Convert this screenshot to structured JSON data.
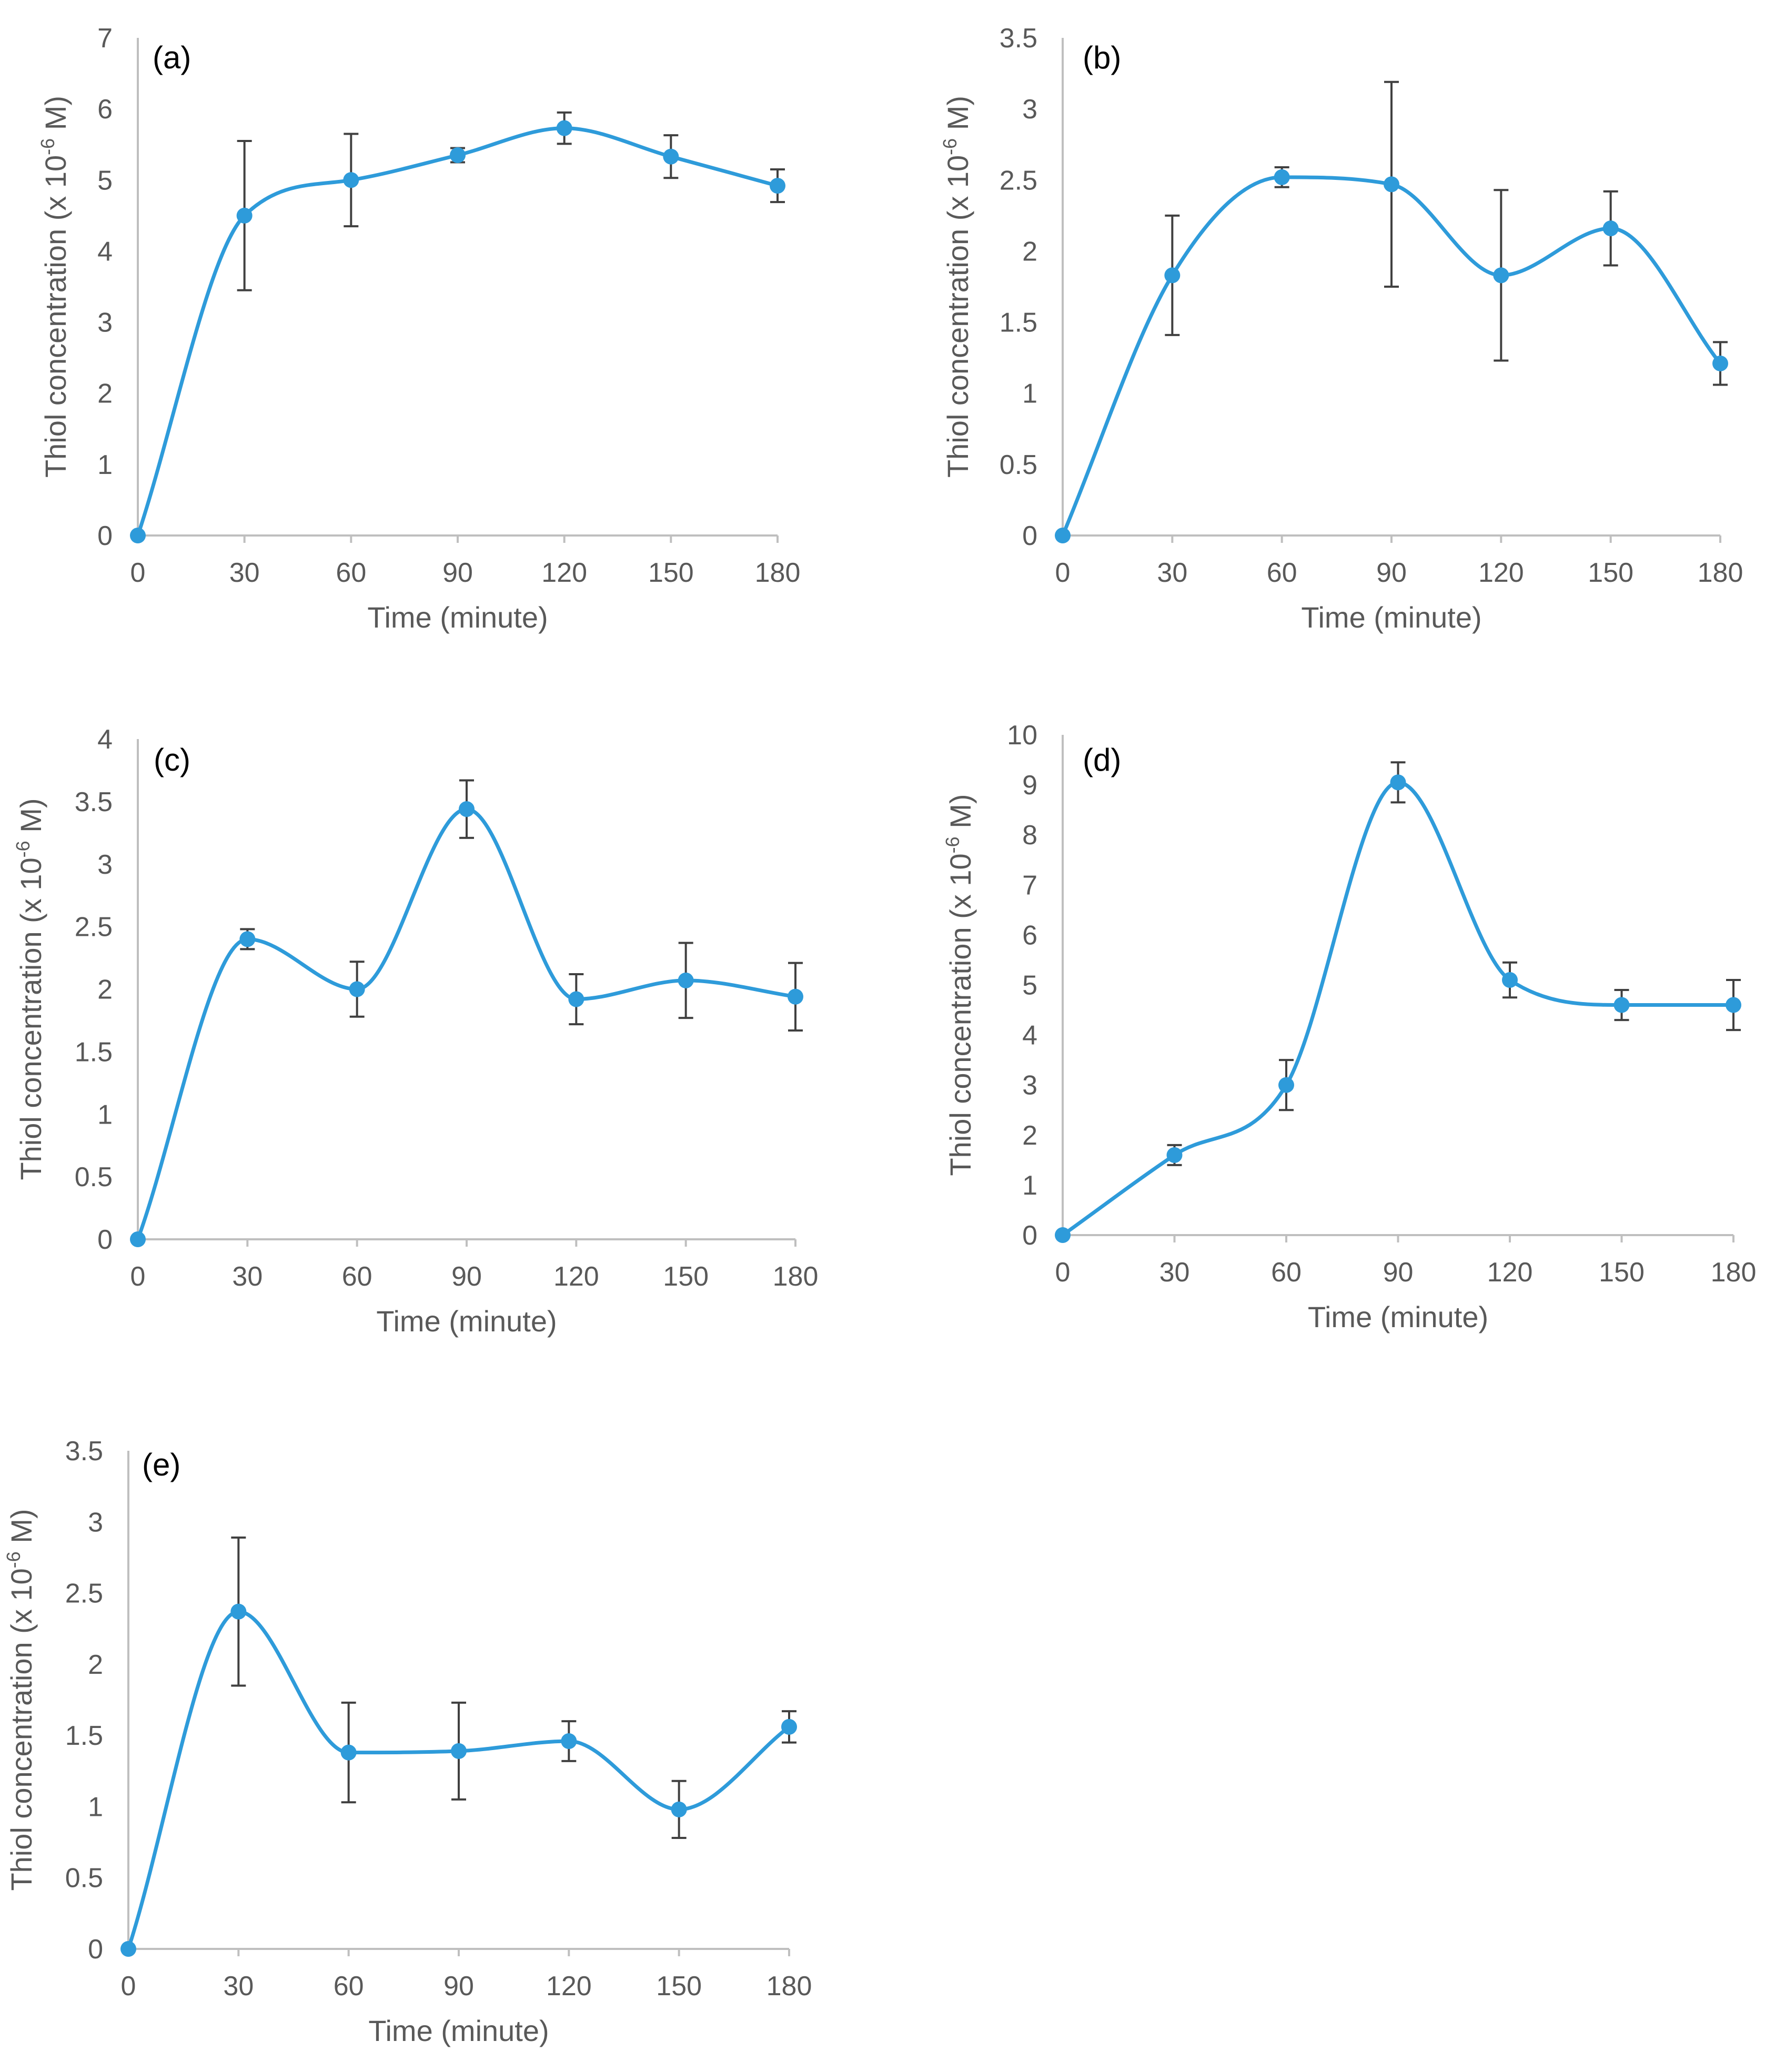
{
  "colors": {
    "series": "#2E9BDA",
    "axis": "#BFBFBF",
    "errorbar": "#404040",
    "text": "#595959"
  },
  "chart_data": [
    {
      "type": "line",
      "panel_label": "(a)",
      "xlabel": "Time (minute)",
      "ylabel": "Thiol concentration (x 10-6 M)",
      "x": [
        0,
        30,
        60,
        90,
        120,
        150,
        180
      ],
      "x_ticks": [
        "0",
        "30",
        "60",
        "90",
        "120",
        "150",
        "180"
      ],
      "y_ticks": [
        "0",
        "1",
        "2",
        "3",
        "4",
        "5",
        "6",
        "7"
      ],
      "ylim": [
        0,
        7
      ],
      "values": [
        0,
        4.5,
        5.0,
        5.35,
        5.73,
        5.33,
        4.92
      ],
      "errors": [
        0,
        1.05,
        0.65,
        0.1,
        0.22,
        0.3,
        0.23
      ]
    },
    {
      "type": "line",
      "panel_label": "(b)",
      "xlabel": "Time (minute)",
      "ylabel": "Thiol concentration (x 10-6 M)",
      "x": [
        0,
        30,
        60,
        90,
        120,
        150,
        180
      ],
      "x_ticks": [
        "0",
        "30",
        "60",
        "90",
        "120",
        "150",
        "180"
      ],
      "y_ticks": [
        "0",
        "0.5",
        "1",
        "1.5",
        "2",
        "2.5",
        "3",
        "3.5"
      ],
      "ylim": [
        0,
        3.5
      ],
      "values": [
        0,
        1.83,
        2.52,
        2.47,
        1.83,
        2.16,
        1.21
      ],
      "errors": [
        0,
        0.42,
        0.07,
        0.72,
        0.6,
        0.26,
        0.15
      ]
    },
    {
      "type": "line",
      "panel_label": "(c)",
      "xlabel": "Time (minute)",
      "ylabel": "Thiol concentration (x 10-6 M)",
      "x": [
        0,
        30,
        60,
        90,
        120,
        150,
        180
      ],
      "x_ticks": [
        "0",
        "30",
        "60",
        "90",
        "120",
        "150",
        "180"
      ],
      "y_ticks": [
        "0",
        "0.5",
        "1",
        "1.5",
        "2",
        "2.5",
        "3",
        "3.5",
        "4"
      ],
      "ylim": [
        0,
        4
      ],
      "values": [
        0,
        2.4,
        2.0,
        3.44,
        1.92,
        2.07,
        1.94
      ],
      "errors": [
        0,
        0.08,
        0.22,
        0.23,
        0.2,
        0.3,
        0.27
      ]
    },
    {
      "type": "line",
      "panel_label": "(d)",
      "xlabel": "Time (minute)",
      "ylabel": "Thiol concentration (x 10-6 M)",
      "x": [
        0,
        30,
        60,
        90,
        120,
        150,
        180
      ],
      "x_ticks": [
        "0",
        "30",
        "60",
        "90",
        "120",
        "150",
        "180"
      ],
      "y_ticks": [
        "0",
        "1",
        "2",
        "3",
        "4",
        "5",
        "6",
        "7",
        "8",
        "9",
        "10"
      ],
      "ylim": [
        0,
        10
      ],
      "values": [
        0,
        1.6,
        3.0,
        9.05,
        5.1,
        4.6,
        4.6
      ],
      "errors": [
        0,
        0.2,
        0.5,
        0.4,
        0.35,
        0.3,
        0.5
      ]
    },
    {
      "type": "line",
      "panel_label": "(e)",
      "xlabel": "Time (minute)",
      "ylabel": "Thiol concentration (x 10-6 M)",
      "x": [
        0,
        30,
        60,
        90,
        120,
        150,
        180
      ],
      "x_ticks": [
        "0",
        "30",
        "60",
        "90",
        "120",
        "150",
        "180"
      ],
      "y_ticks": [
        "0",
        "0.5",
        "1",
        "1.5",
        "2",
        "2.5",
        "3",
        "3.5"
      ],
      "ylim": [
        0,
        3.5
      ],
      "values": [
        0,
        2.37,
        1.38,
        1.39,
        1.46,
        0.98,
        1.56
      ],
      "errors": [
        0,
        0.52,
        0.35,
        0.34,
        0.14,
        0.2,
        0.11
      ]
    }
  ]
}
